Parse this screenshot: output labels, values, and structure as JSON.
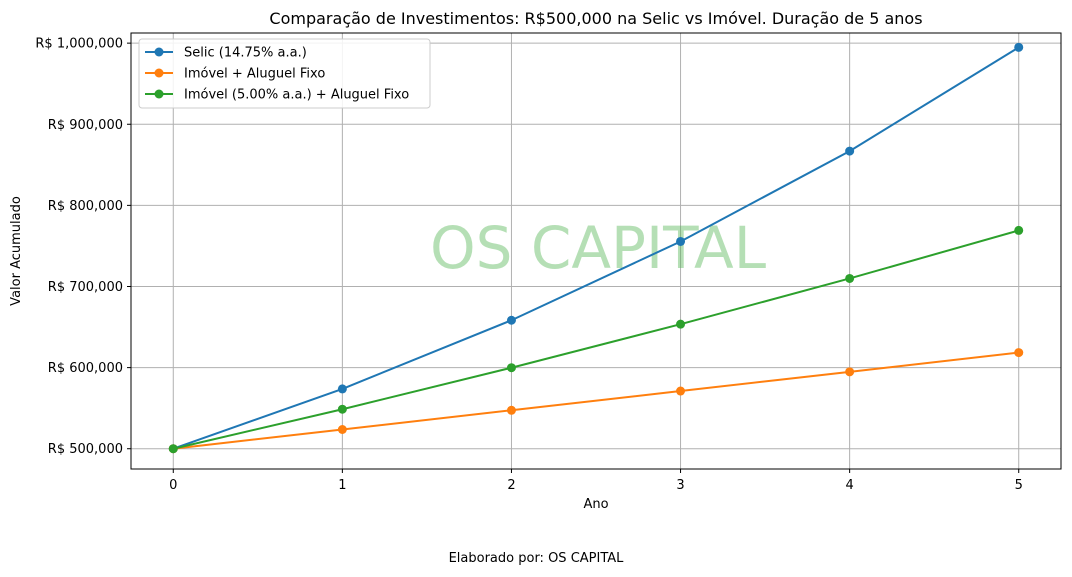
{
  "footer_text": "Elaborado por: OS CAPITAL",
  "chart_data": {
    "type": "line",
    "title": "Comparação de Investimentos: R$500,000 na Selic vs Imóvel. Duração de 5 anos",
    "xlabel": "Ano",
    "ylabel": "Valor Acumulado",
    "x": [
      0,
      1,
      2,
      3,
      4,
      5
    ],
    "xticks": [
      "0",
      "1",
      "2",
      "3",
      "4",
      "5"
    ],
    "xlim": [
      -0.25,
      5.25
    ],
    "ylim": [
      475000,
      1012500
    ],
    "yticks": [
      500000,
      600000,
      700000,
      800000,
      900000,
      1000000
    ],
    "ytick_labels": [
      "R$ 500,000",
      "R$ 600,000",
      "R$ 700,000",
      "R$ 800,000",
      "R$ 900,000",
      "R$ 1,000,000"
    ],
    "grid": true,
    "legend_position": "top-left",
    "watermark": "OS CAPITAL",
    "watermark_color": "#5cb85c",
    "series": [
      {
        "name": "Selic (14.75% a.a.)",
        "color": "#1f77b4",
        "values": [
          500000,
          573750,
          658377,
          755488,
          866923,
          994794
        ]
      },
      {
        "name": "Imóvel + Aluguel Fixo",
        "color": "#ff7f0e",
        "values": [
          500000,
          523700,
          547400,
          571100,
          594800,
          618500
        ]
      },
      {
        "name": "Imóvel (5.00% a.a.) + Aluguel Fixo",
        "color": "#2ca02c",
        "values": [
          500000,
          548700,
          599838,
          653530,
          709907,
          769102
        ]
      }
    ]
  }
}
